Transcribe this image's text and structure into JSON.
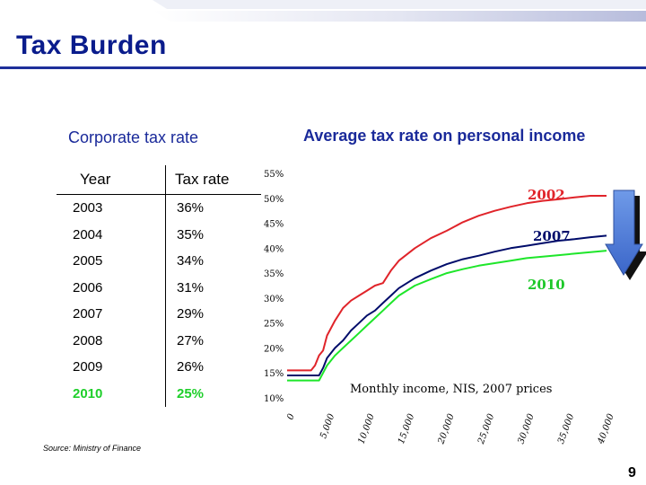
{
  "slide": {
    "title": "Tax Burden",
    "page_number": "9",
    "source": "Source: Ministry of Finance"
  },
  "corporate": {
    "title": "Corporate tax rate",
    "headers": [
      "Year",
      "Tax rate"
    ],
    "rows": [
      {
        "year": "2003",
        "rate": "36%"
      },
      {
        "year": "2004",
        "rate": "35%"
      },
      {
        "year": "2005",
        "rate": "34%"
      },
      {
        "year": "2006",
        "rate": "31%"
      },
      {
        "year": "2007",
        "rate": "29%"
      },
      {
        "year": "2008",
        "rate": "27%"
      },
      {
        "year": "2009",
        "rate": "26%"
      },
      {
        "year": "2010",
        "rate": "25%",
        "highlight": true
      }
    ]
  },
  "chart_data": {
    "type": "line",
    "title": "Average tax rate on personal income",
    "xlabel": "Monthly income, NIS, 2007 prices",
    "ylabel": "",
    "xlim": [
      0,
      40000
    ],
    "ylim": [
      10,
      55
    ],
    "x_ticks": [
      "0",
      "5,000",
      "10,000",
      "15,000",
      "20,000",
      "25,000",
      "30,000",
      "35,000",
      "40,000"
    ],
    "y_ticks": [
      "10%",
      "15%",
      "20%",
      "25%",
      "30%",
      "35%",
      "40%",
      "45%",
      "50%",
      "55%"
    ],
    "grid": false,
    "arrow_direction": "down",
    "series": [
      {
        "name": "2002",
        "color": "#e0242a",
        "x": [
          0,
          3000,
          3500,
          4000,
          4500,
          5000,
          6000,
          7000,
          8000,
          9000,
          10000,
          11000,
          12000,
          13000,
          14000,
          16000,
          18000,
          20000,
          22000,
          24000,
          26000,
          28000,
          30000,
          32000,
          34000,
          36000,
          38000,
          40000
        ],
        "y": [
          15.5,
          15.5,
          16.5,
          18.5,
          19.5,
          22.5,
          25.5,
          28,
          29.5,
          30.5,
          31.5,
          32.5,
          33,
          35.5,
          37.5,
          40,
          42,
          43.5,
          45.2,
          46.5,
          47.5,
          48.3,
          49,
          49.5,
          49.8,
          50.2,
          50.5,
          50.5
        ]
      },
      {
        "name": "2007",
        "color": "#000c6a",
        "x": [
          0,
          4000,
          4500,
          5000,
          6000,
          7000,
          8000,
          9000,
          10000,
          11000,
          12000,
          13000,
          14000,
          16000,
          18000,
          20000,
          22000,
          24000,
          26000,
          28000,
          30000,
          32000,
          34000,
          36000,
          38000,
          40000
        ],
        "y": [
          14.5,
          14.5,
          16,
          18,
          20,
          21.5,
          23.5,
          25,
          26.5,
          27.5,
          29,
          30.5,
          32,
          34,
          35.5,
          36.8,
          37.8,
          38.5,
          39.3,
          40,
          40.5,
          41,
          41.5,
          41.8,
          42.2,
          42.5
        ]
      },
      {
        "name": "2010",
        "color": "#1ee62a",
        "x": [
          0,
          4000,
          4500,
          5000,
          6000,
          7000,
          8000,
          9000,
          10000,
          11000,
          12000,
          13000,
          14000,
          16000,
          18000,
          20000,
          22000,
          24000,
          26000,
          28000,
          30000,
          32000,
          34000,
          36000,
          38000,
          40000
        ],
        "y": [
          13.5,
          13.5,
          15,
          16.5,
          18.5,
          20,
          21.5,
          23,
          24.5,
          26,
          27.5,
          29,
          30.5,
          32.5,
          33.8,
          35,
          35.8,
          36.5,
          37,
          37.5,
          38,
          38.3,
          38.6,
          38.9,
          39.2,
          39.5
        ]
      }
    ]
  }
}
